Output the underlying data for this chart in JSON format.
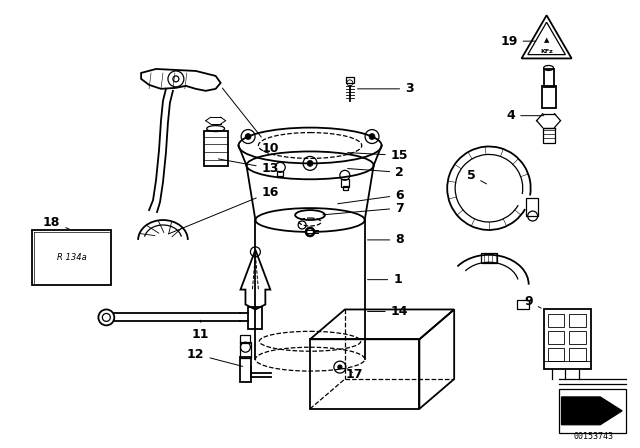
{
  "bg_color": "#ffffff",
  "figure_id": "00153743",
  "lw": 0.9
}
